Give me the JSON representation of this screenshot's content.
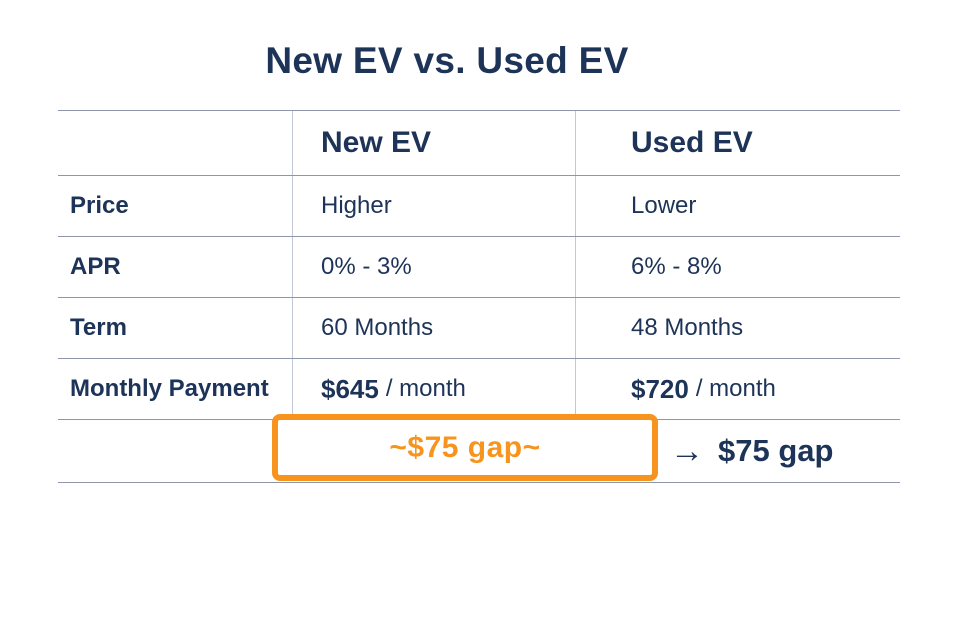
{
  "title": "New EV vs. Used EV",
  "table": {
    "header": {
      "col1": "",
      "col2": "New EV",
      "col3": "Used EV"
    },
    "rows": [
      {
        "label": "Price",
        "new_ev": "Higher",
        "used_ev": "Lower"
      },
      {
        "label": "APR",
        "new_ev": "0% - 3%",
        "used_ev": "6% - 8%"
      },
      {
        "label": "Term",
        "new_ev": "60 Months",
        "used_ev": "48 Months"
      },
      {
        "label": "Monthly Payment",
        "new_ev": {
          "amount": "$645",
          "unit": "/ month"
        },
        "used_ev": {
          "amount": "$720",
          "unit": "/ month"
        }
      }
    ]
  },
  "gap_callout": {
    "box_label": "~$75 gap~",
    "arrow": "→",
    "annotation": "$75 gap"
  },
  "colors": {
    "navy": "#1d3357",
    "orange": "#f7941e",
    "line": "#8e97aa",
    "divider": "#c2c8d3",
    "bg": "#ffffff"
  },
  "chart_data": {
    "type": "table",
    "title": "New EV vs. Used EV",
    "columns": [
      "",
      "New EV",
      "Used EV"
    ],
    "rows": [
      [
        "Price",
        "Higher",
        "Lower"
      ],
      [
        "APR",
        "0% - 3%",
        "6% - 8%"
      ],
      [
        "Term",
        "60 Months",
        "48 Months"
      ],
      [
        "Monthly Payment",
        "$645 / month",
        "$720 / month"
      ]
    ],
    "annotations": [
      "~$75 gap~",
      "→ $75 gap"
    ],
    "legend_position": "none",
    "grid": "table-lines"
  }
}
